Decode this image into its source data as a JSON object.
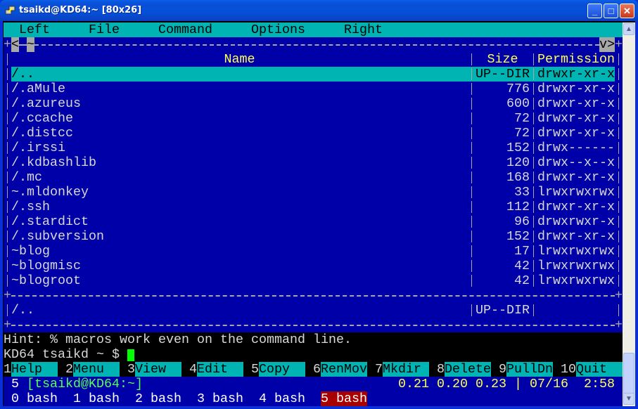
{
  "window": {
    "title": "tsaikd@KD64:~ [80x26]",
    "icon": "putty-icon",
    "buttons": [
      "minimize",
      "maximize",
      "close"
    ]
  },
  "colors": {
    "panel_bg": "#0000a8",
    "cyan": "#00b4b4",
    "header": "#ffff55",
    "cursor": "#00ff00",
    "active_window": "#a80000"
  },
  "menu": [
    "Left",
    "File",
    "Command",
    "Options",
    "Right"
  ],
  "panel": {
    "top_left": [
      "<",
      "~"
    ],
    "top_right": "v>",
    "headers": {
      "name": "Name",
      "size": "Size",
      "perm": "Permission"
    },
    "files": [
      {
        "name": "/..",
        "size": "UP--DIR",
        "perm": "drwxr-xr-x",
        "selected": true
      },
      {
        "name": "/.aMule",
        "size": "776",
        "perm": "drwxr-xr-x"
      },
      {
        "name": "/.azureus",
        "size": "600",
        "perm": "drwxr-xr-x"
      },
      {
        "name": "/.ccache",
        "size": "72",
        "perm": "drwxr-xr-x"
      },
      {
        "name": "/.distcc",
        "size": "72",
        "perm": "drwxr-xr-x"
      },
      {
        "name": "/.irssi",
        "size": "152",
        "perm": "drwx------"
      },
      {
        "name": "/.kdbashlib",
        "size": "120",
        "perm": "drwx--x--x"
      },
      {
        "name": "/.mc",
        "size": "168",
        "perm": "drwxr-xr-x"
      },
      {
        "name": "~.mldonkey",
        "size": "33",
        "perm": "lrwxrwxrwx"
      },
      {
        "name": "/.ssh",
        "size": "112",
        "perm": "drwxr-xr-x"
      },
      {
        "name": "/.stardict",
        "size": "96",
        "perm": "drwxrwxr-x"
      },
      {
        "name": "/.subversion",
        "size": "152",
        "perm": "drwxr-xr-x"
      },
      {
        "name": "~blog",
        "size": "17",
        "perm": "lrwxrwxrwx"
      },
      {
        "name": "~blogmisc",
        "size": "42",
        "perm": "lrwxrwxrwx"
      },
      {
        "name": "~blogroot",
        "size": "42",
        "perm": "lrwxrwxrwx"
      }
    ],
    "mini_status": {
      "name": "/..",
      "size": "UP--DIR"
    }
  },
  "hint": "Hint: % macros work even on the command line.",
  "prompt": "KD64 tsaikd ~ $ ",
  "fkeys": [
    {
      "num": "1",
      "label": "Help"
    },
    {
      "num": "2",
      "label": "Menu"
    },
    {
      "num": "3",
      "label": "View"
    },
    {
      "num": "4",
      "label": "Edit"
    },
    {
      "num": "5",
      "label": "Copy"
    },
    {
      "num": "6",
      "label": "RenMov"
    },
    {
      "num": "7",
      "label": "Mkdir"
    },
    {
      "num": "8",
      "label": "Delete"
    },
    {
      "num": "9",
      "label": "PullDn"
    },
    {
      "num": "10",
      "label": "Quit"
    }
  ],
  "screen_status": {
    "window_num": "5",
    "host": "[tsaikd@KD64:~]",
    "load": "0.21 0.20 0.23",
    "date": "07/16",
    "time": "2:58"
  },
  "windows": [
    {
      "label": "0 bash"
    },
    {
      "label": "1 bash"
    },
    {
      "label": "2 bash"
    },
    {
      "label": "3 bash"
    },
    {
      "label": "4 bash"
    },
    {
      "label": "5 bash",
      "active": true
    }
  ]
}
